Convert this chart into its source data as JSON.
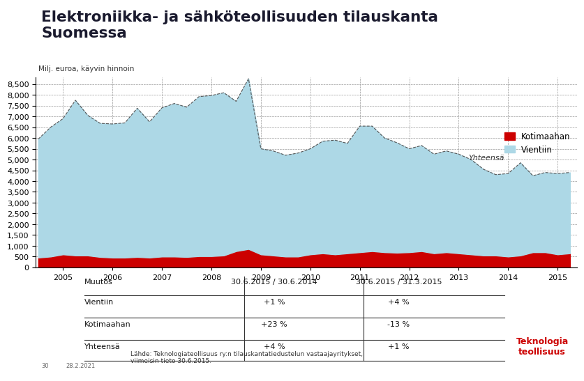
{
  "title_line1": "Elektroniikka- ja sähköteollisuuden tilauskanta",
  "title_line2": "Suomessa",
  "subtitle": "Milj. euroa, käyvin hinnoin",
  "yticks": [
    0,
    500,
    1000,
    1500,
    2000,
    2500,
    3000,
    3500,
    4000,
    4500,
    5000,
    5500,
    6000,
    6500,
    7000,
    7500,
    8000,
    8500
  ],
  "ylim": [
    0,
    8800
  ],
  "bg_color": "#FFFFFF",
  "grid_color": "#999999",
  "vientiin_color": "#ADD8E6",
  "kotimaahan_color": "#CC0000",
  "yhteensa_label": "Yhteensä",
  "legend_kotimaahan": "Kotimaahan",
  "legend_vientiin": "Vientiin",
  "table_header": [
    "Muutos",
    "30.6.2015 / 30.6.2014",
    "30.6.2015 / 31.3.2015"
  ],
  "table_rows": [
    [
      "Vientiin",
      "+1 %",
      "+4 %"
    ],
    [
      "Kotimaahan",
      "+23 %",
      "-13 %"
    ],
    [
      "Yhteensä",
      "+4 %",
      "+1 %"
    ]
  ],
  "source_text": "Lähde: Teknologiateollisuus ry:n tilauskantatiedustelun vastaajayritykset,\nviimeisin tieto 30.6.2015.",
  "page_num": "30",
  "date_text": "28.2.2021",
  "teknologia_text": "Teknologia\nteollisuus",
  "teknologia_color": "#CC0000",
  "years": [
    2004.5,
    2004.75,
    2005.0,
    2005.25,
    2005.5,
    2005.75,
    2006.0,
    2006.25,
    2006.5,
    2006.75,
    2007.0,
    2007.25,
    2007.5,
    2007.75,
    2008.0,
    2008.25,
    2008.5,
    2008.75,
    2009.0,
    2009.25,
    2009.5,
    2009.75,
    2010.0,
    2010.25,
    2010.5,
    2010.75,
    2011.0,
    2011.25,
    2011.5,
    2011.75,
    2012.0,
    2012.25,
    2012.5,
    2012.75,
    2013.0,
    2013.25,
    2013.5,
    2013.75,
    2014.0,
    2014.25,
    2014.5,
    2014.75,
    2015.0,
    2015.25
  ],
  "vientiin": [
    5500,
    6000,
    6300,
    7200,
    6500,
    6200,
    6200,
    6250,
    6900,
    6300,
    6900,
    7100,
    6950,
    7400,
    7450,
    7550,
    6950,
    7900,
    4900,
    4850,
    4700,
    4800,
    4900,
    5200,
    5300,
    5100,
    5850,
    5800,
    5300,
    5100,
    4800,
    4900,
    4600,
    4700,
    4600,
    4400,
    4000,
    3750,
    3850,
    4300,
    3550,
    3700,
    3750,
    3750
  ],
  "kotimaahan": [
    450,
    500,
    600,
    550,
    550,
    480,
    450,
    450,
    480,
    450,
    500,
    500,
    480,
    520,
    520,
    550,
    750,
    850,
    600,
    550,
    500,
    500,
    600,
    650,
    600,
    650,
    700,
    750,
    700,
    680,
    700,
    750,
    650,
    700,
    650,
    600,
    550,
    550,
    500,
    550,
    700,
    700,
    600,
    650
  ]
}
